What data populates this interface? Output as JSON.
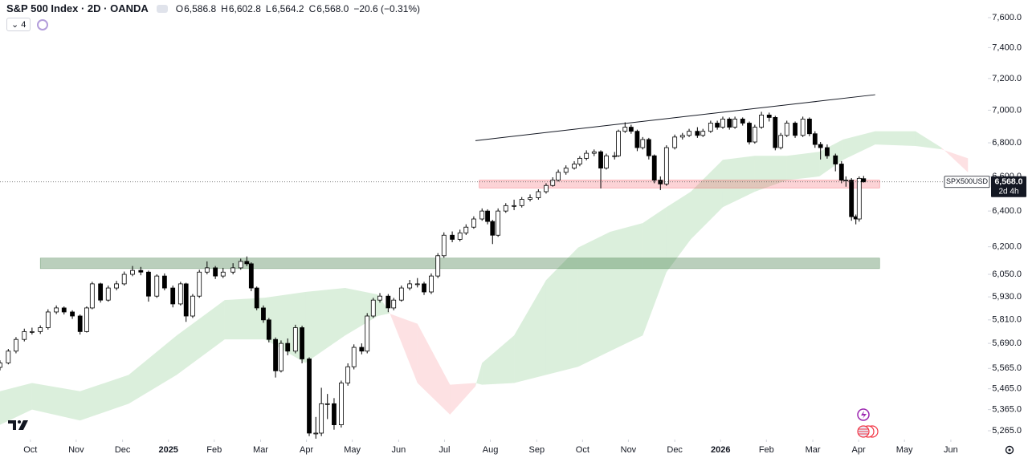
{
  "chart_data": {
    "type": "candlestick",
    "title": "S&P 500 Index · 2D · OANDA",
    "header_ohlc": [
      {
        "key": "O",
        "label": "6,586.8"
      },
      {
        "key": "H",
        "label": "6,602.8"
      },
      {
        "key": "L",
        "label": "6,564.2"
      },
      {
        "key": "C",
        "label": "6,568.0"
      }
    ],
    "change_label": "−20.6 (−0.31%)",
    "indicator_count": 4,
    "symbol": "SPX500USD",
    "last_price": {
      "value": 6568.0,
      "label": "6,568.0"
    },
    "countdown": "2d 4h",
    "log_scale": true,
    "up_color": "#ffffff",
    "down_color": "#000000",
    "xlim": [
      2024.695,
      2026.484
    ],
    "ylim": [
      5224,
      7720
    ],
    "xticks": [
      {
        "value": 2024.75,
        "label": "Oct"
      },
      {
        "value": 2024.833,
        "label": "Nov"
      },
      {
        "value": 2024.917,
        "label": "Dec"
      },
      2025,
      {
        "value": 2025.083,
        "label": "Feb"
      },
      {
        "value": 2025.167,
        "label": "Mar"
      },
      {
        "value": 2025.25,
        "label": "Apr"
      },
      {
        "value": 2025.333,
        "label": "May"
      },
      {
        "value": 2025.417,
        "label": "Jun"
      },
      {
        "value": 2025.5,
        "label": "Jul"
      },
      {
        "value": 2025.583,
        "label": "Aug"
      },
      {
        "value": 2025.667,
        "label": "Sep"
      },
      {
        "value": 2025.75,
        "label": "Oct"
      },
      {
        "value": 2025.833,
        "label": "Nov"
      },
      {
        "value": 2025.917,
        "label": "Dec"
      },
      2026,
      {
        "value": 2026.083,
        "label": "Feb"
      },
      {
        "value": 2026.167,
        "label": "Mar"
      },
      {
        "value": 2026.25,
        "label": "Apr"
      },
      {
        "value": 2026.333,
        "label": "May"
      },
      {
        "value": 2026.417,
        "label": "Jun"
      }
    ],
    "yticks": [
      {
        "value": 7600,
        "label": "7,600.0"
      },
      {
        "value": 7400,
        "label": "7,400.0"
      },
      {
        "value": 7200,
        "label": "7,200.0"
      },
      {
        "value": 7000,
        "label": "7,000.0"
      },
      {
        "value": 6800,
        "label": "6,800.0"
      },
      {
        "value": 6600,
        "label": "6,600.0"
      },
      {
        "value": 6400,
        "label": "6,400.0"
      },
      {
        "value": 6200,
        "label": "6,200.0"
      },
      {
        "value": 6050,
        "label": "6,050.0"
      },
      {
        "value": 5930,
        "label": "5,930.0"
      },
      {
        "value": 5810,
        "label": "5,810.0"
      },
      {
        "value": 5690,
        "label": "5,690.0"
      },
      {
        "value": 5565,
        "label": "5,565.0"
      },
      {
        "value": 5465,
        "label": "5,465.0"
      },
      {
        "value": 5365,
        "label": "5,365.0"
      },
      {
        "value": 5265,
        "label": "5,265.0"
      }
    ],
    "x": [
      2024.695,
      2024.71,
      2024.724,
      2024.739,
      2024.753,
      2024.768,
      2024.782,
      2024.797,
      2024.811,
      2024.826,
      2024.84,
      2024.852,
      2024.862,
      2024.877,
      2024.891,
      2024.906,
      2024.92,
      2024.935,
      2024.95,
      2024.964,
      2024.979,
      2024.993,
      2025.008,
      2025.022,
      2025.032,
      2025.044,
      2025.056,
      2025.07,
      2025.085,
      2025.099,
      2025.117,
      2025.131,
      2025.142,
      2025.15,
      2025.16,
      2025.172,
      2025.182,
      2025.194,
      2025.204,
      2025.216,
      2025.23,
      2025.242,
      2025.255,
      2025.267,
      2025.277,
      2025.288,
      2025.3,
      2025.313,
      2025.325,
      2025.336,
      2025.35,
      2025.36,
      2025.371,
      2025.383,
      2025.398,
      2025.408,
      2025.422,
      2025.437,
      2025.451,
      2025.463,
      2025.476,
      2025.488,
      2025.499,
      2025.514,
      2025.528,
      2025.539,
      2025.553,
      2025.568,
      2025.578,
      2025.587,
      2025.597,
      2025.611,
      2025.626,
      2025.64,
      2025.655,
      2025.67,
      2025.684,
      2025.696,
      2025.706,
      2025.72,
      2025.735,
      2025.745,
      2025.757,
      2025.771,
      2025.783,
      2025.793,
      2025.808,
      2025.815,
      2025.827,
      2025.838,
      2025.849,
      2025.859,
      2025.87,
      2025.88,
      2025.891,
      2025.902,
      2025.917,
      2025.931,
      2025.943,
      2025.958,
      2025.968,
      2025.982,
      2025.994,
      2026.004,
      2026.016,
      2026.026,
      2026.04,
      2026.052,
      2026.062,
      2026.074,
      2026.088,
      2026.099,
      2026.109,
      2026.12,
      2026.135,
      2026.149,
      2026.161,
      2026.171,
      2026.181,
      2026.193,
      2026.208,
      2026.219,
      2026.227,
      2026.237,
      2026.245,
      2026.251,
      2026.259
    ],
    "ohlc": [
      [
        5570,
        5605,
        5555,
        5592
      ],
      [
        5592,
        5662,
        5585,
        5651
      ],
      [
        5651,
        5722,
        5640,
        5710
      ],
      [
        5710,
        5765,
        5700,
        5750
      ],
      [
        5750,
        5770,
        5735,
        5750
      ],
      [
        5750,
        5782,
        5738,
        5770
      ],
      [
        5770,
        5865,
        5760,
        5851
      ],
      [
        5851,
        5885,
        5840,
        5872
      ],
      [
        5872,
        5880,
        5838,
        5851
      ],
      [
        5851,
        5860,
        5815,
        5830
      ],
      [
        5830,
        5838,
        5735,
        5750
      ],
      [
        5750,
        5880,
        5745,
        5872
      ],
      [
        5872,
        6010,
        5865,
        5999
      ],
      [
        5999,
        6005,
        5900,
        5913
      ],
      [
        5913,
        5990,
        5905,
        5977
      ],
      [
        5977,
        6015,
        5965,
        5999
      ],
      [
        5999,
        6065,
        5990,
        6050
      ],
      [
        6050,
        6095,
        6040,
        6071
      ],
      [
        6071,
        6090,
        6045,
        6062
      ],
      [
        6062,
        6070,
        5905,
        5934
      ],
      [
        5934,
        6050,
        5925,
        6041
      ],
      [
        6041,
        6055,
        5965,
        5977
      ],
      [
        5977,
        5990,
        5875,
        5893
      ],
      [
        5893,
        6010,
        5885,
        5999
      ],
      [
        5999,
        6005,
        5800,
        5830
      ],
      [
        5830,
        5945,
        5820,
        5934
      ],
      [
        5934,
        6075,
        5925,
        6062
      ],
      [
        6062,
        6120,
        6050,
        6085
      ],
      [
        6085,
        6095,
        6025,
        6041
      ],
      [
        6041,
        6085,
        6030,
        6062
      ],
      [
        6062,
        6110,
        6050,
        6085
      ],
      [
        6085,
        6135,
        6075,
        6120
      ],
      [
        6120,
        6147,
        6095,
        6107
      ],
      [
        6107,
        6115,
        5960,
        5977
      ],
      [
        5977,
        5985,
        5860,
        5872
      ],
      [
        5872,
        5885,
        5795,
        5810
      ],
      [
        5810,
        5820,
        5695,
        5710
      ],
      [
        5710,
        5720,
        5520,
        5553
      ],
      [
        5553,
        5705,
        5545,
        5690
      ],
      [
        5690,
        5715,
        5630,
        5651
      ],
      [
        5651,
        5785,
        5640,
        5770
      ],
      [
        5770,
        5780,
        5590,
        5612
      ],
      [
        5612,
        5620,
        5240,
        5254
      ],
      [
        5254,
        5330,
        5228,
        5254
      ],
      [
        5254,
        5470,
        5240,
        5393
      ],
      [
        5393,
        5440,
        5320,
        5393
      ],
      [
        5393,
        5420,
        5270,
        5293
      ],
      [
        5293,
        5505,
        5280,
        5493
      ],
      [
        5493,
        5590,
        5480,
        5573
      ],
      [
        5573,
        5685,
        5560,
        5670
      ],
      [
        5670,
        5690,
        5635,
        5651
      ],
      [
        5651,
        5845,
        5640,
        5830
      ],
      [
        5830,
        5925,
        5820,
        5913
      ],
      [
        5913,
        5950,
        5900,
        5934
      ],
      [
        5934,
        5945,
        5850,
        5872
      ],
      [
        5872,
        5925,
        5860,
        5913
      ],
      [
        5913,
        5990,
        5905,
        5977
      ],
      [
        5977,
        6020,
        5965,
        5999
      ],
      [
        5999,
        6030,
        5980,
        5999
      ],
      [
        5999,
        6010,
        5940,
        5956
      ],
      [
        5956,
        6055,
        5945,
        6041
      ],
      [
        6041,
        6165,
        6030,
        6151
      ],
      [
        6151,
        6280,
        6140,
        6264
      ],
      [
        6264,
        6285,
        6225,
        6241
      ],
      [
        6241,
        6295,
        6230,
        6277
      ],
      [
        6277,
        6325,
        6265,
        6309
      ],
      [
        6309,
        6370,
        6300,
        6355
      ],
      [
        6355,
        6415,
        6345,
        6400
      ],
      [
        6400,
        6410,
        6325,
        6341
      ],
      [
        6341,
        6350,
        6215,
        6264
      ],
      [
        6264,
        6415,
        6255,
        6400
      ],
      [
        6400,
        6445,
        6390,
        6431
      ],
      [
        6431,
        6465,
        6405,
        6431
      ],
      [
        6431,
        6480,
        6420,
        6467
      ],
      [
        6467,
        6495,
        6455,
        6476
      ],
      [
        6476,
        6525,
        6465,
        6511
      ],
      [
        6511,
        6560,
        6500,
        6547
      ],
      [
        6547,
        6595,
        6540,
        6578
      ],
      [
        6578,
        6640,
        6570,
        6624
      ],
      [
        6624,
        6665,
        6610,
        6649
      ],
      [
        6649,
        6690,
        6640,
        6673
      ],
      [
        6673,
        6720,
        6660,
        6707
      ],
      [
        6707,
        6755,
        6695,
        6737
      ],
      [
        6737,
        6760,
        6720,
        6746
      ],
      [
        6746,
        6755,
        6530,
        6649
      ],
      [
        6649,
        6735,
        6640,
        6722
      ],
      [
        6722,
        6745,
        6700,
        6722
      ],
      [
        6722,
        6880,
        6715,
        6870
      ],
      [
        6870,
        6925,
        6860,
        6895
      ],
      [
        6895,
        6910,
        6855,
        6870
      ],
      [
        6870,
        6880,
        6750,
        6771
      ],
      [
        6771,
        6835,
        6760,
        6820
      ],
      [
        6820,
        6830,
        6700,
        6722
      ],
      [
        6722,
        6730,
        6560,
        6578
      ],
      [
        6578,
        6600,
        6520,
        6556
      ],
      [
        6556,
        6785,
        6545,
        6771
      ],
      [
        6771,
        6850,
        6760,
        6835
      ],
      [
        6835,
        6860,
        6820,
        6845
      ],
      [
        6845,
        6885,
        6835,
        6870
      ],
      [
        6870,
        6895,
        6830,
        6845
      ],
      [
        6845,
        6885,
        6835,
        6870
      ],
      [
        6870,
        6935,
        6860,
        6920
      ],
      [
        6920,
        6935,
        6880,
        6895
      ],
      [
        6895,
        6960,
        6885,
        6945
      ],
      [
        6945,
        6955,
        6880,
        6895
      ],
      [
        6895,
        6960,
        6885,
        6945
      ],
      [
        6945,
        6955,
        6905,
        6920
      ],
      [
        6920,
        6930,
        6790,
        6805
      ],
      [
        6805,
        6910,
        6795,
        6895
      ],
      [
        6895,
        6990,
        6885,
        6970
      ],
      [
        6970,
        6985,
        6930,
        6955
      ],
      [
        6955,
        6965,
        6755,
        6771
      ],
      [
        6771,
        6860,
        6760,
        6845
      ],
      [
        6845,
        6935,
        6835,
        6920
      ],
      [
        6920,
        6930,
        6830,
        6845
      ],
      [
        6845,
        6960,
        6835,
        6945
      ],
      [
        6945,
        6955,
        6840,
        6855
      ],
      [
        6855,
        6870,
        6770,
        6790
      ],
      [
        6790,
        6805,
        6700,
        6771
      ],
      [
        6771,
        6790,
        6705,
        6722
      ],
      [
        6722,
        6735,
        6630,
        6673
      ],
      [
        6673,
        6690,
        6560,
        6578
      ],
      [
        6578,
        6600,
        6540,
        6578
      ],
      [
        6578,
        6590,
        6345,
        6368
      ],
      [
        6368,
        6380,
        6325,
        6355
      ],
      [
        6355,
        6600,
        6340,
        6588.6
      ],
      [
        6586.8,
        6602.8,
        6564.2,
        6568.0
      ]
    ],
    "cloud": {
      "up_color": "rgba(76,175,80,0.2)",
      "down_color": "rgba(242,54,69,0.15)",
      "x": [
        2024.695,
        2024.753,
        2024.84,
        2024.928,
        2025.015,
        2025.102,
        2025.175,
        2025.248,
        2025.32,
        2025.379,
        2025.4,
        2025.451,
        2025.51,
        2025.556,
        2025.568,
        2025.626,
        2025.684,
        2025.742,
        2025.8,
        2025.859,
        2025.902,
        2025.946,
        2026.004,
        2026.062,
        2026.12,
        2026.179,
        2026.222,
        2026.28,
        2026.353,
        2026.4,
        2026.448
      ],
      "span_a": [
        5453,
        5493,
        5453,
        5533,
        5730,
        5913,
        5926,
        5956,
        5977,
        5943,
        5851,
        5493,
        5341,
        5477,
        5592,
        5730,
        6019,
        6196,
        6283,
        6332,
        6422,
        6511,
        6698,
        6722,
        6722,
        6746,
        6820,
        6870,
        6870,
        6771,
        6624
      ],
      "span_b": [
        5293,
        5365,
        5313,
        5393,
        5533,
        5710,
        5710,
        5592,
        5730,
        5830,
        5843,
        5790,
        5485,
        5493,
        5485,
        5493,
        5533,
        5573,
        5651,
        5730,
        6062,
        6241,
        6422,
        6511,
        6578,
        6600,
        6698,
        6790,
        6781,
        6761,
        6707
      ]
    },
    "zones": [
      {
        "color": "rgba(242,54,69,0.22)",
        "border": "rgba(242,54,69,0.55)",
        "x": [
          2025.563,
          2026.288
        ],
        "y": [
          6533,
          6578
        ]
      },
      {
        "color": "rgba(56,118,62,0.35)",
        "border": "rgba(56,118,62,0.5)",
        "x": [
          2024.768,
          2026.288
        ],
        "y": [
          6081,
          6138
        ]
      }
    ],
    "trendlines": [
      {
        "color": "#131722",
        "x": [
          2025.556,
          2026.28
        ],
        "y": [
          6813,
          7097
        ]
      }
    ]
  }
}
